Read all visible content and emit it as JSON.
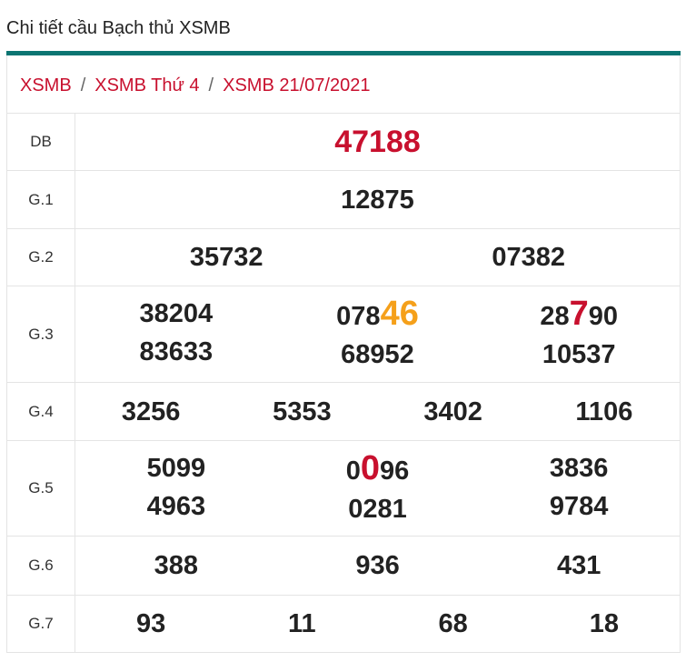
{
  "header": {
    "title": "Chi tiết cầu Bạch thủ XSMB"
  },
  "breadcrumb": {
    "separator": "/",
    "items": [
      "XSMB",
      "XSMB Thứ 4",
      "XSMB 21/07/2021"
    ]
  },
  "table": {
    "rows": [
      {
        "label": "DB",
        "special": true,
        "cells": [
          [
            [
              "47188"
            ]
          ]
        ]
      },
      {
        "label": "G.1",
        "cells": [
          [
            [
              "12875"
            ]
          ]
        ]
      },
      {
        "label": "G.2",
        "cells": [
          [
            [
              "35732"
            ]
          ],
          [
            [
              "07382"
            ]
          ]
        ]
      },
      {
        "label": "G.3",
        "cells": [
          [
            [
              "38204"
            ],
            [
              "83633"
            ]
          ],
          [
            [
              "078",
              {
                "text": "46",
                "color": "#f5a01a"
              }
            ],
            [
              "68952"
            ]
          ],
          [
            [
              "28",
              {
                "text": "7",
                "color": "#c8102e"
              },
              "90"
            ],
            [
              "10537"
            ]
          ]
        ]
      },
      {
        "label": "G.4",
        "cells": [
          [
            [
              "3256"
            ]
          ],
          [
            [
              "5353"
            ]
          ],
          [
            [
              "3402"
            ]
          ],
          [
            [
              "1106"
            ]
          ]
        ]
      },
      {
        "label": "G.5",
        "cells": [
          [
            [
              "5099"
            ],
            [
              "4963"
            ]
          ],
          [
            [
              "0",
              {
                "text": "0",
                "color": "#c8102e"
              },
              "96"
            ],
            [
              "0281"
            ]
          ],
          [
            [
              "3836"
            ],
            [
              "9784"
            ]
          ]
        ]
      },
      {
        "label": "G.6",
        "cells": [
          [
            [
              "388"
            ]
          ],
          [
            [
              "936"
            ]
          ],
          [
            [
              "431"
            ]
          ]
        ]
      },
      {
        "label": "G.7",
        "cells": [
          [
            [
              "93"
            ]
          ],
          [
            [
              "11"
            ]
          ],
          [
            [
              "68"
            ]
          ],
          [
            [
              "18"
            ]
          ]
        ]
      }
    ]
  }
}
